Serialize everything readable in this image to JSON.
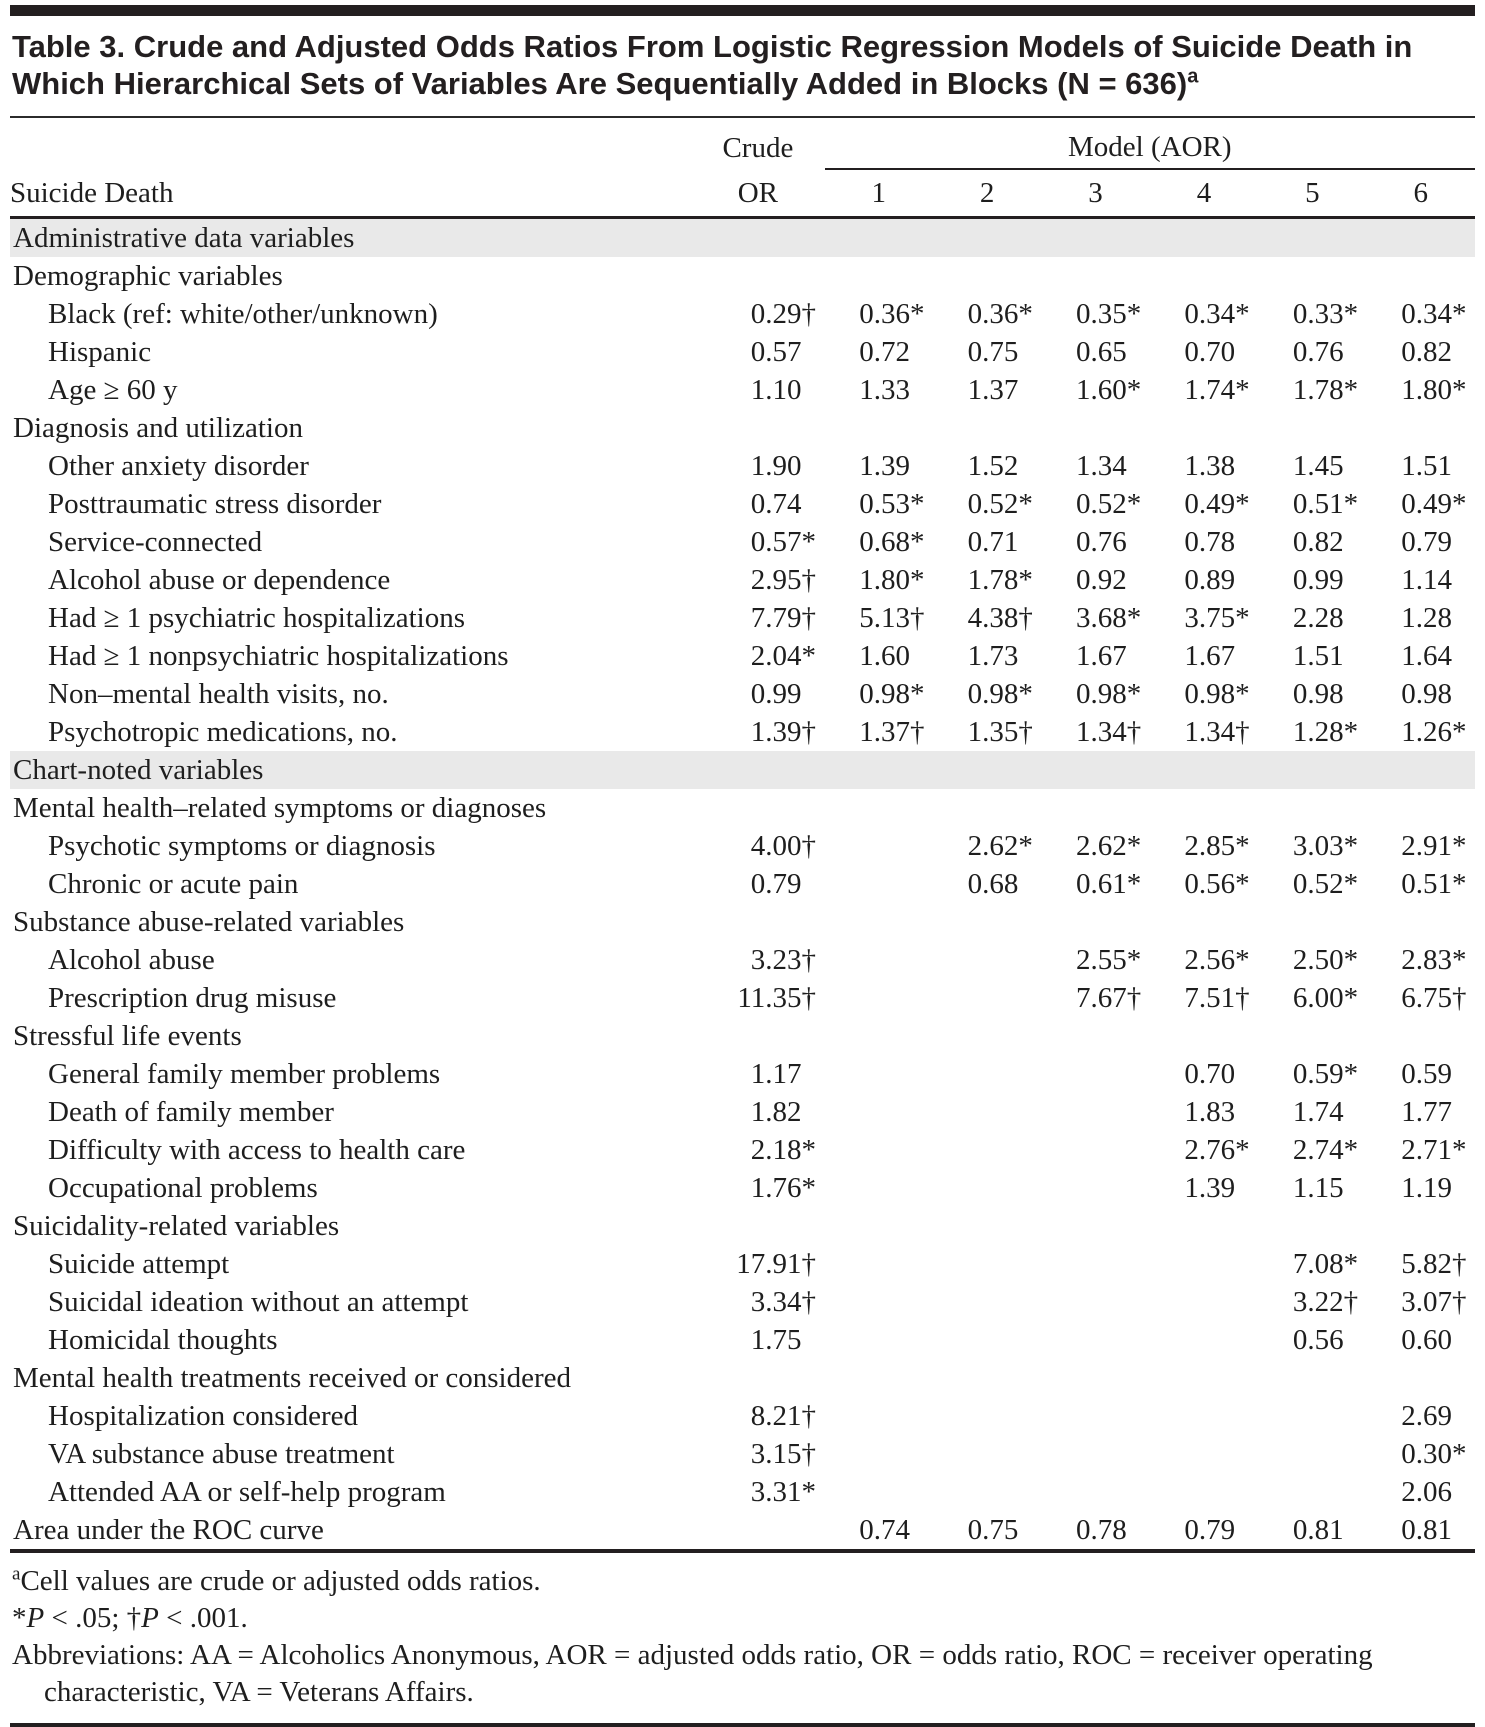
{
  "title": {
    "text": "Table 3. Crude and Adjusted Odds Ratios From Logistic Regression Models of Suicide Death in Which Hierarchical Sets of Variables Are Sequentially Added in Blocks (N = 636)",
    "superscript": "a"
  },
  "table": {
    "stub_header": "Suicide Death",
    "crude_header_line1": "Crude",
    "crude_header_line2": "OR",
    "model_group_header": "Model (AOR)",
    "model_columns": [
      "1",
      "2",
      "3",
      "4",
      "5",
      "6"
    ],
    "rows": [
      {
        "type": "band",
        "label": "Administrative data variables"
      },
      {
        "type": "subhead",
        "label": "Demographic variables"
      },
      {
        "type": "data",
        "label": "Black (ref: white/other/unknown)",
        "values": [
          "0.29†",
          "0.36*",
          "0.36*",
          "0.35*",
          "0.34*",
          "0.33*",
          "0.34*"
        ]
      },
      {
        "type": "data",
        "label": "Hispanic",
        "values": [
          "0.57",
          "0.72",
          "0.75",
          "0.65",
          "0.70",
          "0.76",
          "0.82"
        ]
      },
      {
        "type": "data",
        "label": "Age ≥ 60 y",
        "values": [
          "1.10",
          "1.33",
          "1.37",
          "1.60*",
          "1.74*",
          "1.78*",
          "1.80*"
        ]
      },
      {
        "type": "subhead",
        "label": "Diagnosis and utilization"
      },
      {
        "type": "data",
        "label": "Other anxiety disorder",
        "values": [
          "1.90",
          "1.39",
          "1.52",
          "1.34",
          "1.38",
          "1.45",
          "1.51"
        ]
      },
      {
        "type": "data",
        "label": "Posttraumatic stress disorder",
        "values": [
          "0.74",
          "0.53*",
          "0.52*",
          "0.52*",
          "0.49*",
          "0.51*",
          "0.49*"
        ]
      },
      {
        "type": "data",
        "label": "Service-connected",
        "values": [
          "0.57*",
          "0.68*",
          "0.71",
          "0.76",
          "0.78",
          "0.82",
          "0.79"
        ]
      },
      {
        "type": "data",
        "label": "Alcohol abuse or dependence",
        "values": [
          "2.95†",
          "1.80*",
          "1.78*",
          "0.92",
          "0.89",
          "0.99",
          "1.14"
        ]
      },
      {
        "type": "data",
        "label": "Had ≥ 1 psychiatric hospitalizations",
        "values": [
          "7.79†",
          "5.13†",
          "4.38†",
          "3.68*",
          "3.75*",
          "2.28",
          "1.28"
        ]
      },
      {
        "type": "data",
        "label": "Had ≥ 1 nonpsychiatric hospitalizations",
        "values": [
          "2.04*",
          "1.60",
          "1.73",
          "1.67",
          "1.67",
          "1.51",
          "1.64"
        ]
      },
      {
        "type": "data",
        "label": "Non–mental health visits, no.",
        "values": [
          "0.99",
          "0.98*",
          "0.98*",
          "0.98*",
          "0.98*",
          "0.98",
          "0.98"
        ]
      },
      {
        "type": "data",
        "label": "Psychotropic medications, no.",
        "values": [
          "1.39†",
          "1.37†",
          "1.35†",
          "1.34†",
          "1.34†",
          "1.28*",
          "1.26*"
        ]
      },
      {
        "type": "band",
        "label": "Chart-noted variables"
      },
      {
        "type": "subhead",
        "label": "Mental health–related symptoms or diagnoses"
      },
      {
        "type": "data",
        "label": "Psychotic symptoms or diagnosis",
        "values": [
          "4.00†",
          "",
          "2.62*",
          "2.62*",
          "2.85*",
          "3.03*",
          "2.91*"
        ]
      },
      {
        "type": "data",
        "label": "Chronic or acute pain",
        "values": [
          "0.79",
          "",
          "0.68",
          "0.61*",
          "0.56*",
          "0.52*",
          "0.51*"
        ]
      },
      {
        "type": "subhead",
        "label": "Substance abuse-related variables"
      },
      {
        "type": "data",
        "label": "Alcohol abuse",
        "values": [
          "3.23†",
          "",
          "",
          "2.55*",
          "2.56*",
          "2.50*",
          "2.83*"
        ]
      },
      {
        "type": "data",
        "label": "Prescription drug misuse",
        "values": [
          "11.35†",
          "",
          "",
          "7.67†",
          "7.51†",
          "6.00*",
          "6.75†"
        ]
      },
      {
        "type": "subhead",
        "label": "Stressful life events"
      },
      {
        "type": "data",
        "label": "General family member problems",
        "values": [
          "1.17",
          "",
          "",
          "",
          "0.70",
          "0.59*",
          "0.59"
        ]
      },
      {
        "type": "data",
        "label": "Death of family member",
        "values": [
          "1.82",
          "",
          "",
          "",
          "1.83",
          "1.74",
          "1.77"
        ]
      },
      {
        "type": "data",
        "label": "Difficulty with access to health care",
        "values": [
          "2.18*",
          "",
          "",
          "",
          "2.76*",
          "2.74*",
          "2.71*"
        ]
      },
      {
        "type": "data",
        "label": "Occupational problems",
        "values": [
          "1.76*",
          "",
          "",
          "",
          "1.39",
          "1.15",
          "1.19"
        ]
      },
      {
        "type": "subhead",
        "label": "Suicidality-related variables"
      },
      {
        "type": "data",
        "label": "Suicide attempt",
        "values": [
          "17.91†",
          "",
          "",
          "",
          "",
          "7.08*",
          "5.82†"
        ]
      },
      {
        "type": "data",
        "label": "Suicidal ideation without an attempt",
        "values": [
          "3.34†",
          "",
          "",
          "",
          "",
          "3.22†",
          "3.07†"
        ]
      },
      {
        "type": "data",
        "label": "Homicidal thoughts",
        "values": [
          "1.75",
          "",
          "",
          "",
          "",
          "0.56",
          "0.60"
        ]
      },
      {
        "type": "subhead",
        "label": "Mental health treatments received or considered"
      },
      {
        "type": "data",
        "label": "Hospitalization considered",
        "values": [
          "8.21†",
          "",
          "",
          "",
          "",
          "",
          "2.69"
        ]
      },
      {
        "type": "data",
        "label": "VA substance abuse treatment",
        "values": [
          "3.15†",
          "",
          "",
          "",
          "",
          "",
          "0.30*"
        ]
      },
      {
        "type": "data",
        "label": "Attended AA or self-help program",
        "values": [
          "3.31*",
          "",
          "",
          "",
          "",
          "",
          "2.06"
        ]
      },
      {
        "type": "total",
        "label": "Area under the ROC curve",
        "values": [
          "",
          "0.74",
          "0.75",
          "0.78",
          "0.79",
          "0.81",
          "0.81"
        ]
      }
    ]
  },
  "footnotes": [
    {
      "name": "footnote-cell-values",
      "hanging": false,
      "segments": [
        {
          "text": "a",
          "sup": true
        },
        {
          "text": "Cell values are crude or adjusted odds ratios."
        }
      ]
    },
    {
      "name": "footnote-significance",
      "hanging": false,
      "segments": [
        {
          "text": "*"
        },
        {
          "text": "P",
          "italic": true
        },
        {
          "text": " < .05; †"
        },
        {
          "text": "P",
          "italic": true
        },
        {
          "text": " < .001."
        }
      ]
    },
    {
      "name": "footnote-abbreviations",
      "hanging": true,
      "segments": [
        {
          "text": "Abbreviations: AA = Alcoholics Anonymous, AOR = adjusted odds ratio, OR = odds ratio, ROC = receiver operating characteristic, VA = Veterans Affairs."
        }
      ]
    }
  ],
  "colors": {
    "band_background": "#e9e9e9",
    "rule": "#231f20",
    "text": "#1e1e1e"
  }
}
